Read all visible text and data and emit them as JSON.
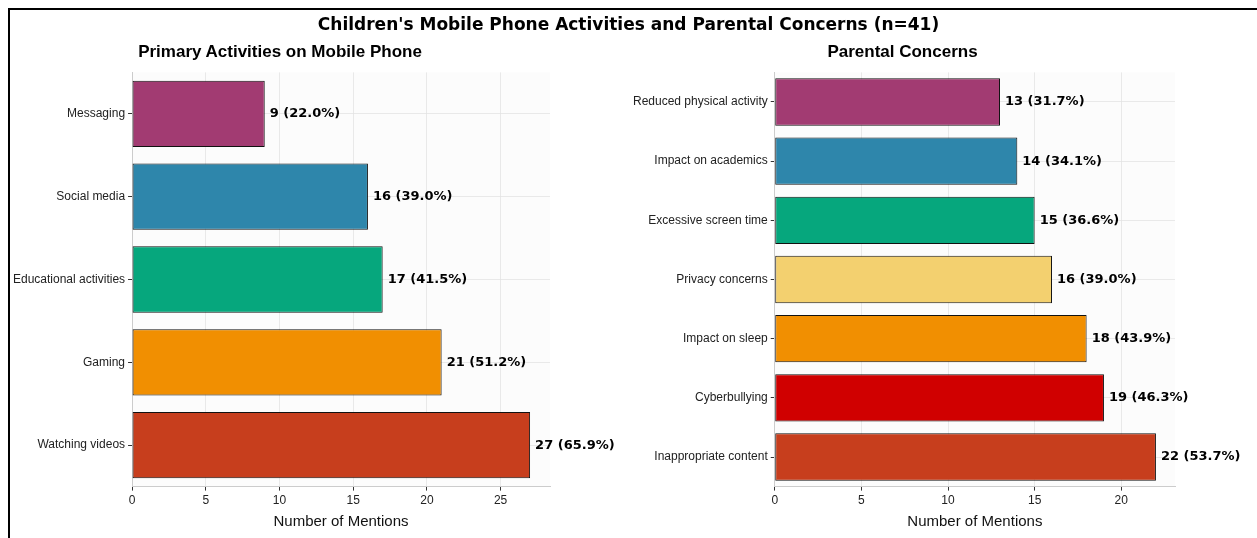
{
  "chart_data": [
    {
      "type": "bar",
      "orientation": "horizontal",
      "title": "Primary Activities on Mobile Phone",
      "xlabel": "Number of Mentions",
      "annotations": [
        "Children's Mobile Phone Activities and Parental Concerns (n=41)"
      ],
      "categories": [
        "Messaging",
        "Social media",
        "Educational activities",
        "Gaming",
        "Watching videos"
      ],
      "values": [
        9,
        16,
        17,
        21,
        27
      ],
      "colors": [
        "#a23b72",
        "#2e86ab",
        "#06a77d",
        "#f18f01",
        "#c73e1d"
      ],
      "value_labels": [
        "9 (22.0%)",
        "16 (39.0%)",
        "17 (41.5%)",
        "21 (51.2%)",
        "27 (65.9%)"
      ],
      "xlim": [
        0,
        28.35
      ],
      "xticks": [
        0,
        5,
        10,
        15,
        20,
        25
      ],
      "grid": true
    },
    {
      "type": "bar",
      "orientation": "horizontal",
      "title": "Parental Concerns",
      "xlabel": "Number of Mentions",
      "categories": [
        "Reduced physical activity",
        "Impact on academics",
        "Excessive screen time",
        "Privacy concerns",
        "Impact on sleep",
        "Cyberbullying",
        "Inappropriate content"
      ],
      "values": [
        13,
        14,
        15,
        16,
        18,
        19,
        22
      ],
      "colors": [
        "#a23b72",
        "#2e86ab",
        "#06a77d",
        "#f3d06f",
        "#f18f01",
        "#d00000",
        "#c73e1d"
      ],
      "value_labels": [
        "13 (31.7%)",
        "14 (34.1%)",
        "15 (36.6%)",
        "16 (39.0%)",
        "18 (43.9%)",
        "19 (46.3%)",
        "22 (53.7%)"
      ],
      "xlim": [
        0,
        23.1
      ],
      "xticks": [
        0,
        5,
        10,
        15,
        20
      ],
      "grid": true
    }
  ]
}
